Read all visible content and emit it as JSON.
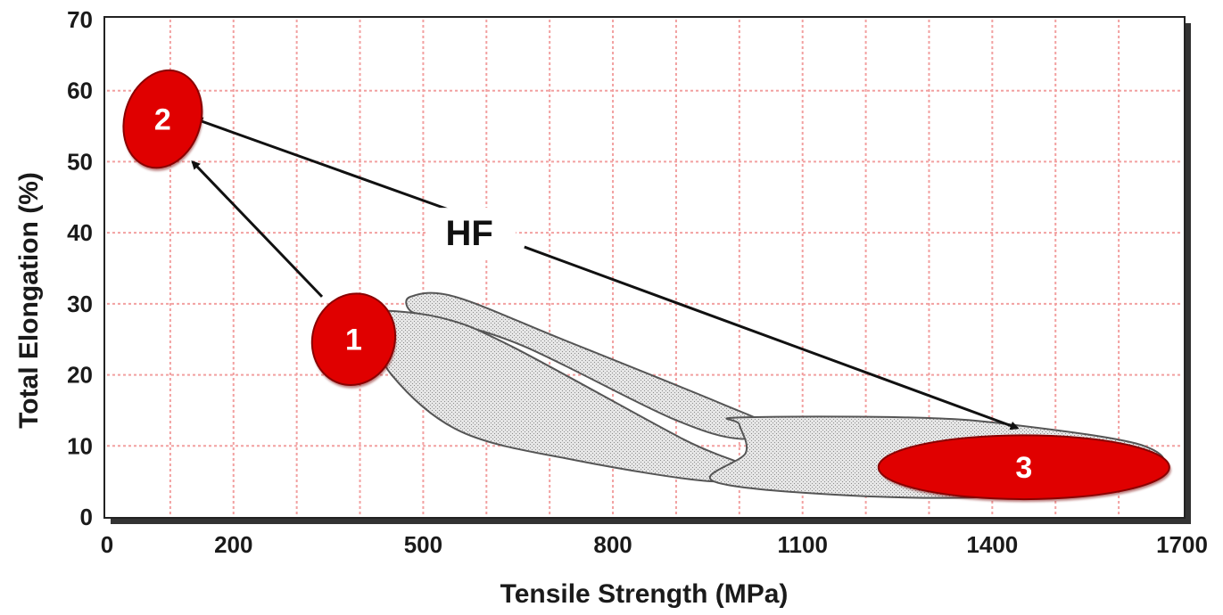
{
  "chart_data": {
    "type": "scatter",
    "title": "",
    "xlabel": "Tensile Strength (MPa)",
    "ylabel": "Total Elongation (%)",
    "xlim": [
      0,
      1700
    ],
    "ylim": [
      0,
      70
    ],
    "xticks": [
      0,
      200,
      500,
      800,
      1100,
      1400,
      1700
    ],
    "yticks": [
      0,
      10,
      20,
      30,
      40,
      50,
      60,
      70
    ],
    "grid": true,
    "gray_regions": [
      {
        "points": [
          [
            480,
            31
          ],
          [
            550,
            31
          ],
          [
            720,
            25
          ],
          [
            970,
            16
          ],
          [
            1040,
            13
          ],
          [
            1000,
            11
          ],
          [
            890,
            14
          ],
          [
            660,
            24
          ],
          [
            520,
            28
          ],
          [
            480,
            29
          ]
        ]
      },
      {
        "points": [
          [
            420,
            29
          ],
          [
            530,
            28
          ],
          [
            640,
            24
          ],
          [
            910,
            11
          ],
          [
            1010,
            7
          ],
          [
            960,
            5
          ],
          [
            740,
            8
          ],
          [
            560,
            12
          ],
          [
            450,
            20
          ],
          [
            420,
            27
          ]
        ]
      },
      {
        "points": [
          [
            1000,
            14
          ],
          [
            1270,
            14
          ],
          [
            1430,
            13
          ],
          [
            1640,
            10
          ],
          [
            1650,
            6
          ],
          [
            1430,
            3
          ],
          [
            1180,
            3
          ],
          [
            960,
            5
          ],
          [
            1010,
            9
          ],
          [
            1000,
            13
          ]
        ]
      }
    ],
    "highlighted_regions": [
      {
        "label": "2",
        "center": [
          88,
          56
        ],
        "width_mpa": 120,
        "height_pct": 14,
        "angle_deg": 18
      },
      {
        "label": "1",
        "center": [
          390,
          25
        ],
        "width_mpa": 130,
        "height_pct": 13,
        "angle_deg": 18
      },
      {
        "label": "3",
        "center": [
          1450,
          7
        ],
        "width_mpa": 460,
        "height_pct": 9,
        "angle_deg": 0
      }
    ],
    "annotation": {
      "text": "HF",
      "position": [
        590,
        40
      ],
      "arrows": [
        {
          "from": [
            580,
            42
          ],
          "to": [
            140,
            56
          ]
        },
        {
          "from": [
            340,
            31
          ],
          "to": [
            135,
            50
          ]
        },
        {
          "from": [
            660,
            38
          ],
          "to": [
            1440,
            12.5
          ]
        }
      ]
    }
  }
}
